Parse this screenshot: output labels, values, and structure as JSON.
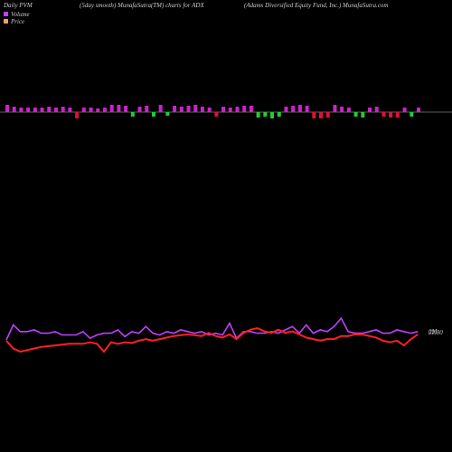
{
  "chart_data": {
    "type": "pvm",
    "title": "Daily PVM",
    "subtitle": "(5day smooth) MunafaSutra(TM) charts for ADX",
    "company": "(Adams Diversified Equity Fund, Inc.) MunafaSutra.com",
    "bars": {
      "values": [
        8,
        6,
        5,
        5,
        5,
        5,
        6,
        5,
        6,
        5,
        -7,
        5,
        5,
        4,
        5,
        8,
        8,
        7,
        -5,
        6,
        7,
        -5,
        8,
        -4,
        7,
        6,
        7,
        8,
        6,
        5,
        -5,
        6,
        5,
        6,
        7,
        7,
        -6,
        -5,
        -7,
        -5,
        6,
        7,
        8,
        7,
        -7,
        -7,
        -6,
        8,
        6,
        5,
        -5,
        -6,
        5,
        6,
        -5,
        -6,
        -6,
        5,
        -5,
        5
      ],
      "colors": [
        "#d020d0",
        "#d020d0",
        "#d020d0",
        "#d020d0",
        "#d020d0",
        "#d020d0",
        "#d020d0",
        "#d020d0",
        "#d020d0",
        "#d020d0",
        "#e0103a",
        "#d020d0",
        "#d020d0",
        "#d020d0",
        "#d020d0",
        "#d020d0",
        "#d020d0",
        "#d020d0",
        "#22cc33",
        "#d020d0",
        "#d020d0",
        "#22cc33",
        "#d020d0",
        "#22cc33",
        "#d020d0",
        "#d020d0",
        "#d020d0",
        "#d020d0",
        "#d020d0",
        "#d020d0",
        "#e0103a",
        "#d020d0",
        "#d020d0",
        "#d020d0",
        "#d020d0",
        "#d020d0",
        "#22cc33",
        "#22cc33",
        "#22cc33",
        "#22cc33",
        "#d020d0",
        "#d020d0",
        "#d020d0",
        "#d020d0",
        "#e0103a",
        "#e0103a",
        "#e0103a",
        "#d020d0",
        "#d020d0",
        "#d020d0",
        "#22cc33",
        "#22cc33",
        "#d020d0",
        "#d020d0",
        "#e0103a",
        "#e0103a",
        "#e0103a",
        "#d020d0",
        "#22cc33",
        "#d020d0"
      ]
    },
    "series": [
      {
        "name": "Volume",
        "color": "#c040ff",
        "end_label": "0M",
        "values": [
          5,
          14,
          10,
          10,
          11,
          9,
          9,
          10,
          8,
          8,
          8,
          10,
          6,
          8,
          9,
          9,
          11,
          7,
          10,
          9,
          13,
          9,
          8,
          10,
          9,
          11,
          10,
          9,
          10,
          8,
          9,
          8,
          15,
          6,
          10,
          10,
          9,
          9,
          10,
          9,
          11,
          13,
          9,
          14,
          9,
          11,
          10,
          13,
          18,
          10,
          9,
          9,
          10,
          11,
          9,
          9,
          11,
          10,
          9,
          10
        ]
      },
      {
        "name": "Price",
        "color": "#ff2020",
        "legend_color": "#f0a070",
        "end_label": "22.80",
        "values": [
          22.4,
          21.9,
          21.7,
          21.8,
          21.9,
          22.0,
          22.05,
          22.1,
          22.15,
          22.2,
          22.2,
          22.2,
          22.3,
          22.2,
          21.7,
          22.3,
          22.2,
          22.3,
          22.25,
          22.4,
          22.5,
          22.4,
          22.5,
          22.6,
          22.7,
          22.75,
          22.8,
          22.75,
          22.7,
          22.9,
          22.7,
          22.6,
          22.8,
          22.5,
          22.9,
          23.1,
          23.2,
          23.0,
          22.9,
          23.1,
          22.9,
          23.0,
          22.8,
          22.6,
          22.5,
          22.4,
          22.5,
          22.5,
          22.7,
          22.7,
          22.8,
          22.8,
          22.7,
          22.6,
          22.4,
          22.3,
          22.4,
          22.1,
          22.5,
          22.8
        ]
      }
    ]
  }
}
